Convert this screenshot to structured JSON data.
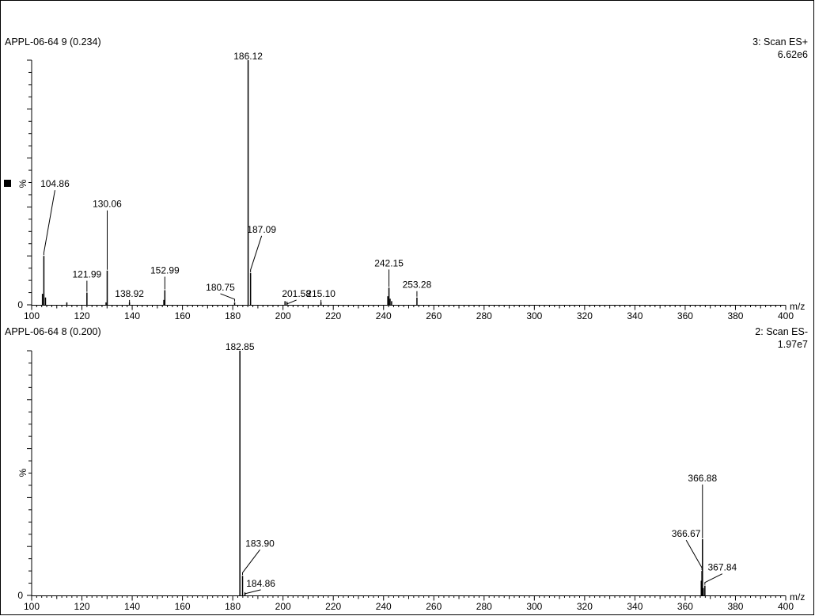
{
  "chart_data": [
    {
      "type": "bar",
      "sample": "APPL-06-64 9 (0.234)",
      "scan": "3: Scan ES+",
      "intensity": "6.62e6",
      "ylabel": "%",
      "xlabel": "m/z",
      "xlim": [
        100,
        400
      ],
      "ylim": [
        0,
        100
      ],
      "y_ticks": [
        "0"
      ],
      "x_ticks": [
        "100",
        "120",
        "140",
        "160",
        "180",
        "200",
        "220",
        "240",
        "260",
        "280",
        "300",
        "320",
        "340",
        "360",
        "380",
        "400"
      ],
      "peaks": [
        {
          "mz": 104.86,
          "value": 20,
          "label": "104.86"
        },
        {
          "mz": 121.99,
          "value": 5,
          "label": "121.99"
        },
        {
          "mz": 130.06,
          "value": 14,
          "label": "130.06"
        },
        {
          "mz": 138.92,
          "value": 1,
          "label": "138.92"
        },
        {
          "mz": 152.99,
          "value": 6,
          "label": "152.99"
        },
        {
          "mz": 180.75,
          "value": 1,
          "label": "180.75"
        },
        {
          "mz": 186.12,
          "value": 100,
          "label": "186.12"
        },
        {
          "mz": 187.09,
          "value": 13,
          "label": "187.09"
        },
        {
          "mz": 201.58,
          "value": 1,
          "label": "201.58"
        },
        {
          "mz": 215.1,
          "value": 1,
          "label": "215.10"
        },
        {
          "mz": 242.15,
          "value": 7,
          "label": "242.15"
        },
        {
          "mz": 253.28,
          "value": 3,
          "label": "253.28"
        }
      ],
      "minor_peaks": [
        {
          "mz": 104.3,
          "value": 4.5
        },
        {
          "mz": 105.5,
          "value": 3
        },
        {
          "mz": 114.0,
          "value": 1
        },
        {
          "mz": 129.6,
          "value": 1
        },
        {
          "mz": 152.6,
          "value": 2
        },
        {
          "mz": 200.8,
          "value": 1.5
        },
        {
          "mz": 241.7,
          "value": 3.5
        },
        {
          "mz": 242.6,
          "value": 2.5
        },
        {
          "mz": 243.2,
          "value": 1.5
        }
      ]
    },
    {
      "type": "bar",
      "sample": "APPL-06-64 8 (0.200)",
      "scan": "2: Scan ES-",
      "intensity": "1.97e7",
      "ylabel": "%",
      "xlabel": "m/z",
      "xlim": [
        100,
        400
      ],
      "ylim": [
        0,
        100
      ],
      "y_ticks": [
        "0"
      ],
      "x_ticks": [
        "100",
        "120",
        "140",
        "160",
        "180",
        "200",
        "220",
        "240",
        "260",
        "280",
        "300",
        "320",
        "340",
        "360",
        "380",
        "400"
      ],
      "peaks": [
        {
          "mz": 182.85,
          "value": 100,
          "label": "182.85"
        },
        {
          "mz": 183.9,
          "value": 8,
          "label": "183.90"
        },
        {
          "mz": 184.86,
          "value": 1,
          "label": "184.86"
        },
        {
          "mz": 366.67,
          "value": 10,
          "label": "366.67"
        },
        {
          "mz": 366.88,
          "value": 23,
          "label": "366.88"
        },
        {
          "mz": 367.84,
          "value": 4,
          "label": "367.84"
        }
      ],
      "minor_peaks": [
        {
          "mz": 366.4,
          "value": 6
        },
        {
          "mz": 367.2,
          "value": 3
        }
      ]
    }
  ]
}
